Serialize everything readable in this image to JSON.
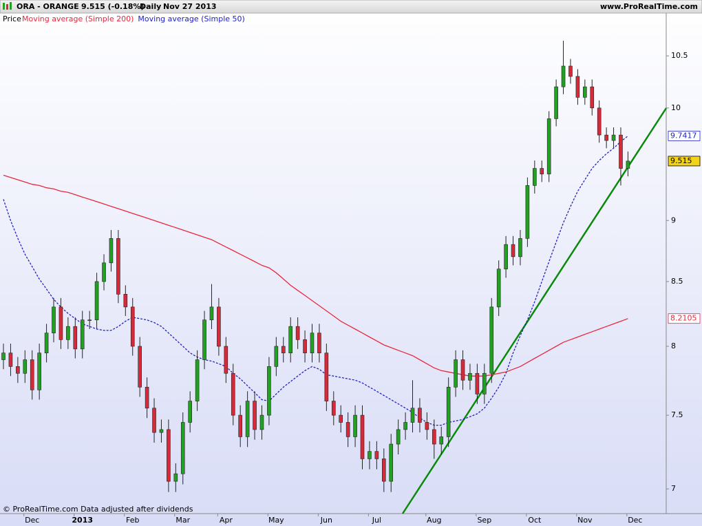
{
  "chart_data": {
    "type": "candlestick",
    "title": "ORA - ORANGE",
    "price_change": "9.515 (-0.18%)",
    "period": "Daily",
    "date": "Nov 27 2013",
    "source": "www.ProRealTime.com",
    "footer": "© ProRealTime.com  Data adjusted after dividends",
    "legend_label": "Price",
    "log_scale": true,
    "ylim": [
      6.84,
      10.81
    ],
    "yticks": [
      7,
      7.5,
      8,
      8.5,
      9,
      10,
      10.5
    ],
    "up_color": "#22a022",
    "down_color": "#d42a3a",
    "categories": [
      null,
      null,
      null,
      null,
      "Dec",
      null,
      null,
      null,
      null,
      null,
      null,
      "2013",
      null,
      null,
      null,
      null,
      null,
      null,
      "Feb",
      null,
      null,
      null,
      null,
      null,
      null,
      "Mar",
      null,
      null,
      null,
      null,
      null,
      "Apr",
      null,
      null,
      null,
      null,
      null,
      null,
      "May",
      null,
      null,
      null,
      null,
      null,
      null,
      "Jun",
      null,
      null,
      null,
      null,
      null,
      null,
      "Jul",
      null,
      null,
      null,
      null,
      null,
      null,
      null,
      "Aug",
      null,
      null,
      null,
      null,
      null,
      null,
      "Sep",
      null,
      null,
      null,
      null,
      null,
      null,
      "Oct",
      null,
      null,
      null,
      null,
      null,
      null,
      "Nov",
      null,
      null,
      null,
      null,
      null,
      null,
      "Dec"
    ],
    "open": [
      7.9,
      7.95,
      7.85,
      7.8,
      7.9,
      7.68,
      7.95,
      8.1,
      8.3,
      8.05,
      8.15,
      7.98,
      8.2,
      8.2,
      8.5,
      8.65,
      8.85,
      8.4,
      8.3,
      8.0,
      7.7,
      7.55,
      7.38,
      7.4,
      7.05,
      7.1,
      7.45,
      7.6,
      7.9,
      8.2,
      8.3,
      8.0,
      7.8,
      7.5,
      7.35,
      7.6,
      7.4,
      7.5,
      7.85,
      8.0,
      7.95,
      8.15,
      8.05,
      7.95,
      8.1,
      7.95,
      7.6,
      7.5,
      7.45,
      7.35,
      7.5,
      7.2,
      7.25,
      7.2,
      7.05,
      7.3,
      7.4,
      7.45,
      7.55,
      7.45,
      7.4,
      7.3,
      7.35,
      7.7,
      7.9,
      7.75,
      7.8,
      7.65,
      7.8,
      8.3,
      8.6,
      8.8,
      8.7,
      8.85,
      9.3,
      9.45,
      9.4,
      9.9,
      10.2,
      10.4,
      10.3,
      10.1,
      10.2,
      10.0,
      9.75,
      9.7,
      9.75,
      9.45,
      null
    ],
    "high": [
      8.02,
      8.02,
      7.92,
      7.97,
      7.97,
      8.02,
      8.17,
      8.37,
      8.37,
      8.22,
      8.22,
      8.27,
      8.27,
      8.57,
      8.72,
      8.92,
      8.92,
      8.47,
      8.37,
      8.07,
      7.77,
      7.62,
      7.47,
      7.47,
      7.17,
      7.52,
      7.67,
      7.97,
      8.27,
      8.48,
      8.37,
      8.07,
      7.87,
      7.57,
      7.67,
      7.67,
      7.57,
      7.92,
      8.07,
      8.07,
      8.22,
      8.22,
      8.12,
      8.17,
      8.17,
      8.02,
      7.67,
      7.57,
      7.52,
      7.57,
      7.57,
      7.32,
      7.32,
      7.27,
      7.37,
      7.47,
      7.52,
      7.75,
      7.62,
      7.52,
      7.47,
      7.42,
      7.77,
      7.97,
      7.97,
      7.87,
      7.87,
      7.87,
      8.37,
      8.67,
      8.87,
      8.87,
      8.92,
      9.37,
      9.52,
      9.52,
      9.97,
      10.27,
      10.65,
      10.47,
      10.37,
      10.27,
      10.27,
      10.07,
      9.82,
      9.82,
      9.82,
      9.6,
      null
    ],
    "low": [
      7.83,
      7.78,
      7.73,
      7.73,
      7.61,
      7.61,
      7.88,
      8.03,
      7.98,
      7.98,
      7.91,
      7.91,
      8.13,
      8.13,
      8.43,
      8.58,
      8.33,
      8.23,
      7.93,
      7.63,
      7.48,
      7.31,
      7.31,
      6.98,
      6.98,
      7.03,
      7.38,
      7.53,
      7.83,
      8.13,
      7.93,
      7.73,
      7.43,
      7.28,
      7.28,
      7.33,
      7.33,
      7.43,
      7.78,
      7.88,
      7.88,
      7.98,
      7.88,
      7.88,
      7.88,
      7.53,
      7.43,
      7.38,
      7.28,
      7.28,
      7.13,
      7.13,
      7.13,
      6.98,
      6.98,
      7.23,
      7.33,
      7.38,
      7.38,
      7.33,
      7.2,
      7.23,
      7.28,
      7.63,
      7.68,
      7.68,
      7.58,
      7.58,
      7.73,
      8.23,
      8.53,
      8.63,
      8.63,
      8.78,
      9.23,
      9.33,
      9.33,
      9.83,
      10.13,
      10.23,
      10.03,
      10.03,
      9.93,
      9.68,
      9.63,
      9.63,
      9.3,
      9.38,
      null
    ],
    "close": [
      7.95,
      7.85,
      7.8,
      7.9,
      7.68,
      7.95,
      8.1,
      8.3,
      8.05,
      8.15,
      7.98,
      8.2,
      8.2,
      8.5,
      8.65,
      8.85,
      8.4,
      8.3,
      8.0,
      7.7,
      7.55,
      7.38,
      7.4,
      7.05,
      7.1,
      7.45,
      7.6,
      7.9,
      8.2,
      8.3,
      8.0,
      7.8,
      7.5,
      7.35,
      7.6,
      7.4,
      7.5,
      7.85,
      8.0,
      7.95,
      8.15,
      8.05,
      7.95,
      8.1,
      7.95,
      7.6,
      7.5,
      7.45,
      7.35,
      7.5,
      7.2,
      7.25,
      7.2,
      7.05,
      7.3,
      7.4,
      7.45,
      7.55,
      7.45,
      7.4,
      7.3,
      7.35,
      7.7,
      7.9,
      7.75,
      7.8,
      7.65,
      7.8,
      8.3,
      8.6,
      8.8,
      8.7,
      8.85,
      9.3,
      9.45,
      9.4,
      9.9,
      10.2,
      10.4,
      10.3,
      10.1,
      10.2,
      10.0,
      9.75,
      9.7,
      9.75,
      9.45,
      9.515,
      null
    ],
    "series": [
      {
        "name": "Moving average (Simple 200)",
        "color": "#e8283c",
        "dashed": false,
        "values": [
          9.39,
          9.37,
          9.35,
          9.33,
          9.31,
          9.3,
          9.28,
          9.27,
          9.25,
          9.24,
          9.22,
          9.2,
          9.18,
          9.16,
          9.14,
          9.12,
          9.1,
          9.08,
          9.06,
          9.04,
          9.02,
          9.0,
          8.98,
          8.96,
          8.94,
          8.92,
          8.9,
          8.88,
          8.86,
          8.84,
          8.81,
          8.78,
          8.75,
          8.72,
          8.69,
          8.66,
          8.63,
          8.61,
          8.57,
          8.52,
          8.47,
          8.43,
          8.39,
          8.35,
          8.31,
          8.27,
          8.23,
          8.19,
          8.16,
          8.13,
          8.1,
          8.07,
          8.04,
          8.01,
          7.99,
          7.97,
          7.95,
          7.93,
          7.9,
          7.87,
          7.84,
          7.82,
          7.81,
          7.8,
          7.79,
          7.78,
          7.78,
          7.78,
          7.79,
          7.8,
          7.81,
          7.83,
          7.85,
          7.88,
          7.91,
          7.94,
          7.97,
          8.0,
          8.03,
          8.05,
          8.07,
          8.09,
          8.11,
          8.13,
          8.15,
          8.17,
          8.19,
          8.2105,
          null
        ]
      },
      {
        "name": "Moving average (Simple 50)",
        "color": "#2020c8",
        "dashed": true,
        "values": [
          9.18,
          9.0,
          8.85,
          8.72,
          8.62,
          8.52,
          8.44,
          8.36,
          8.3,
          8.25,
          8.21,
          8.17,
          8.15,
          8.13,
          8.12,
          8.12,
          8.15,
          8.19,
          8.22,
          8.21,
          8.2,
          8.18,
          8.15,
          8.1,
          8.05,
          8.0,
          7.95,
          7.92,
          7.9,
          7.89,
          7.87,
          7.85,
          7.8,
          7.76,
          7.71,
          7.66,
          7.61,
          7.6,
          7.65,
          7.7,
          7.74,
          7.78,
          7.82,
          7.85,
          7.83,
          7.79,
          7.78,
          7.77,
          7.76,
          7.75,
          7.73,
          7.7,
          7.67,
          7.64,
          7.61,
          7.58,
          7.55,
          7.52,
          7.48,
          7.45,
          7.43,
          7.43,
          7.45,
          7.46,
          7.47,
          7.49,
          7.51,
          7.55,
          7.62,
          7.7,
          7.8,
          7.95,
          8.08,
          8.2,
          8.34,
          8.5,
          8.66,
          8.82,
          8.98,
          9.12,
          9.25,
          9.35,
          9.45,
          9.52,
          9.58,
          9.63,
          9.69,
          9.7417,
          null
        ]
      }
    ]
  }
}
